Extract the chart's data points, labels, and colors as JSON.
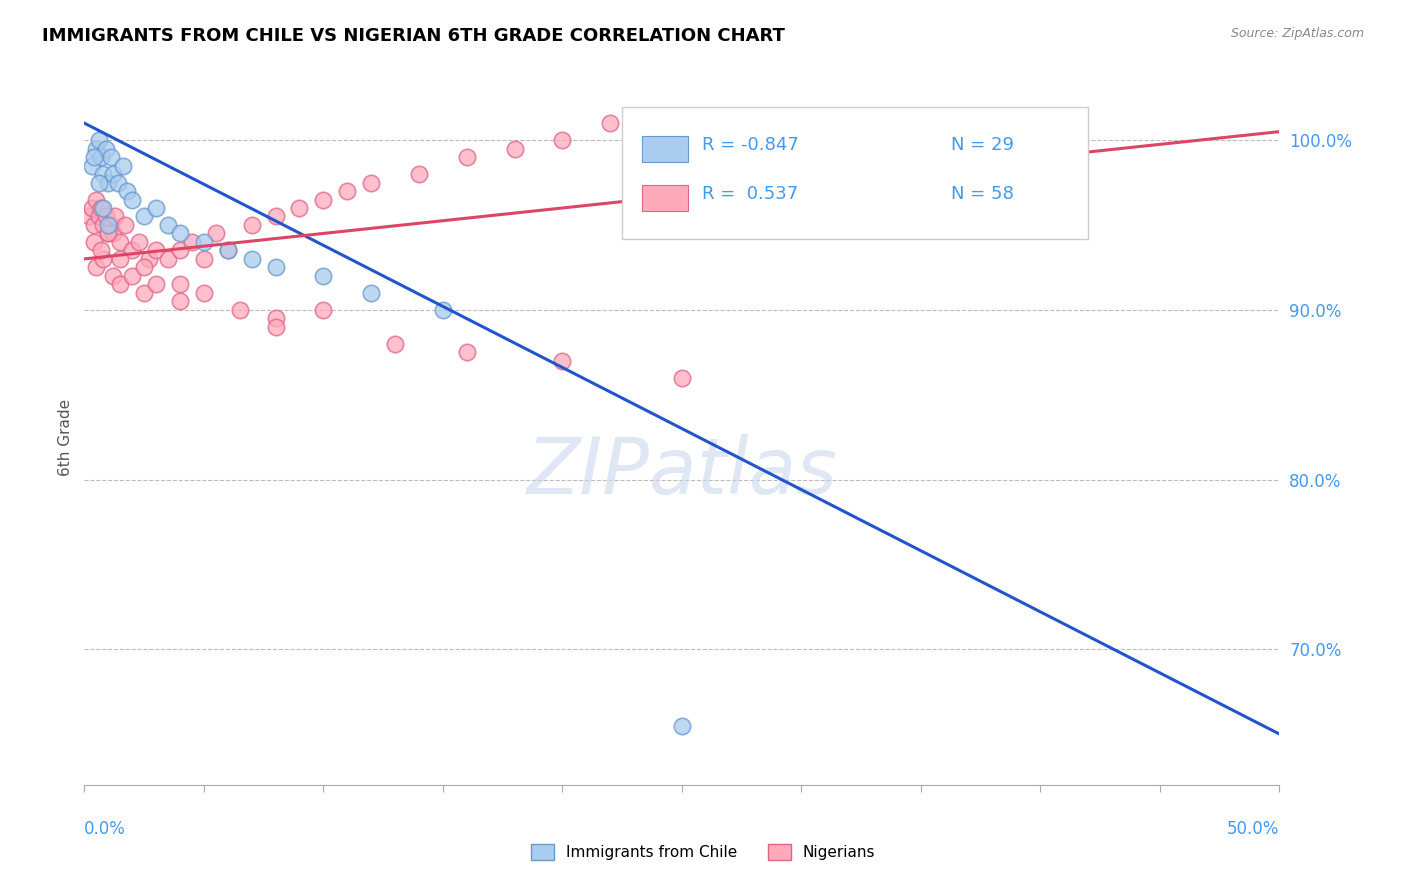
{
  "title": "IMMIGRANTS FROM CHILE VS NIGERIAN 6TH GRADE CORRELATION CHART",
  "source_text": "Source: ZipAtlas.com",
  "ylabel": "6th Grade",
  "ytick_vals": [
    70,
    80,
    90,
    100
  ],
  "ytick_labels": [
    "70.0%",
    "80.0%",
    "90.0%",
    "100.0%"
  ],
  "xlim": [
    0.0,
    50.0
  ],
  "ylim": [
    62.0,
    103.0
  ],
  "watermark": "ZIPatlas",
  "blue_R": -0.847,
  "blue_N": 29,
  "pink_R": 0.537,
  "pink_N": 58,
  "blue_line_x0": 0.0,
  "blue_line_y0": 101.0,
  "blue_line_x1": 50.0,
  "blue_line_y1": 65.0,
  "pink_line_x0": 0.0,
  "pink_line_y0": 93.0,
  "pink_line_x1": 50.0,
  "pink_line_y1": 100.5,
  "blue_scatter_x": [
    0.3,
    0.5,
    0.6,
    0.7,
    0.8,
    0.9,
    1.0,
    1.1,
    1.2,
    1.4,
    1.6,
    1.8,
    2.0,
    2.5,
    3.0,
    3.5,
    4.0,
    5.0,
    6.0,
    7.0,
    8.0,
    10.0,
    12.0,
    15.0,
    25.0,
    0.4,
    0.6,
    0.8,
    1.0
  ],
  "blue_scatter_y": [
    98.5,
    99.5,
    100.0,
    99.0,
    98.0,
    99.5,
    97.5,
    99.0,
    98.0,
    97.5,
    98.5,
    97.0,
    96.5,
    95.5,
    96.0,
    95.0,
    94.5,
    94.0,
    93.5,
    93.0,
    92.5,
    92.0,
    91.0,
    90.0,
    65.5,
    99.0,
    97.5,
    96.0,
    95.0
  ],
  "pink_scatter_x": [
    0.2,
    0.3,
    0.4,
    0.5,
    0.6,
    0.7,
    0.8,
    0.9,
    1.0,
    1.1,
    1.2,
    1.3,
    1.5,
    1.7,
    2.0,
    2.3,
    2.7,
    3.0,
    3.5,
    4.0,
    4.5,
    5.0,
    5.5,
    6.0,
    7.0,
    8.0,
    9.0,
    10.0,
    11.0,
    12.0,
    14.0,
    16.0,
    18.0,
    20.0,
    22.0,
    0.5,
    0.8,
    1.2,
    1.5,
    2.0,
    2.5,
    3.0,
    4.0,
    5.0,
    6.5,
    8.0,
    10.0,
    13.0,
    16.0,
    20.0,
    25.0,
    0.4,
    0.7,
    1.0,
    1.5,
    2.5,
    4.0,
    8.0
  ],
  "pink_scatter_y": [
    95.5,
    96.0,
    95.0,
    96.5,
    95.5,
    96.0,
    95.0,
    95.5,
    94.5,
    95.0,
    94.5,
    95.5,
    94.0,
    95.0,
    93.5,
    94.0,
    93.0,
    93.5,
    93.0,
    93.5,
    94.0,
    93.0,
    94.5,
    93.5,
    95.0,
    95.5,
    96.0,
    96.5,
    97.0,
    97.5,
    98.0,
    99.0,
    99.5,
    100.0,
    101.0,
    92.5,
    93.0,
    92.0,
    91.5,
    92.0,
    91.0,
    91.5,
    90.5,
    91.0,
    90.0,
    89.5,
    90.0,
    88.0,
    87.5,
    87.0,
    86.0,
    94.0,
    93.5,
    94.5,
    93.0,
    92.5,
    91.5,
    89.0
  ],
  "blue_line_color": "#2255cc",
  "pink_line_color": "#dd4466",
  "scatter_blue_fill": "#aaccee",
  "scatter_blue_edge": "#6699cc",
  "scatter_pink_fill": "#ffaabb",
  "scatter_pink_edge": "#dd6688",
  "grid_color": "#bbbbbb",
  "title_color": "#000000",
  "axis_label_color": "#555555",
  "tick_color": "#4499ee",
  "background_color": "#ffffff"
}
